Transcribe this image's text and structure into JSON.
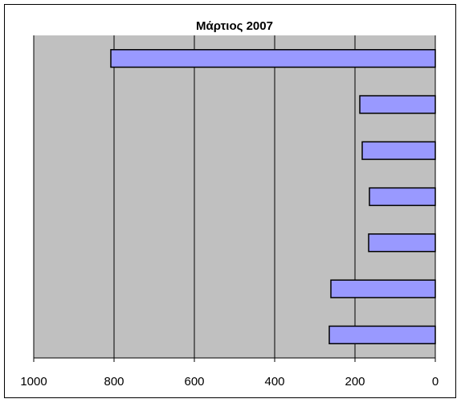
{
  "chart_data": {
    "type": "bar",
    "orientation": "horizontal",
    "title": "Μάρτιος  2007",
    "categories": [
      null,
      null,
      null,
      null,
      null,
      null,
      null
    ],
    "values": [
      808,
      188,
      182,
      164,
      166,
      260,
      264
    ],
    "color": "#9999ff",
    "xlim": [
      1000,
      0
    ],
    "xticks": [
      1000,
      800,
      600,
      400,
      200,
      0
    ],
    "grid": true
  }
}
